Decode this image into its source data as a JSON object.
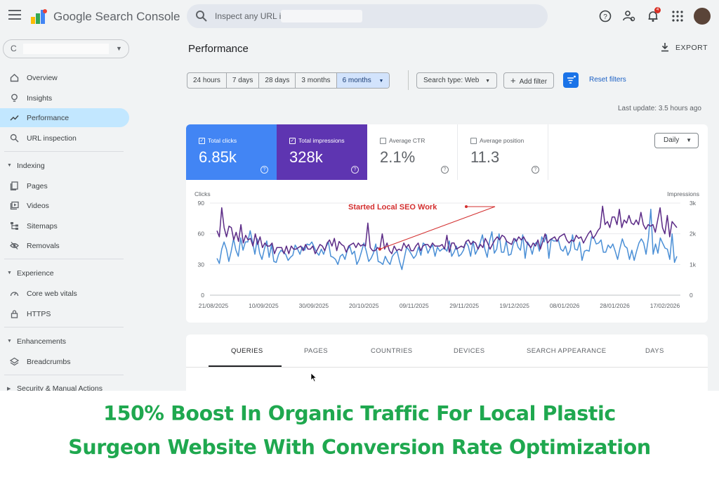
{
  "app": {
    "title": "Google Search Console",
    "search_placeholder": "Inspect any URL in '",
    "notification_count": "4"
  },
  "sidebar": {
    "property_icon_letter": "C",
    "items_top": [
      {
        "label": "Overview",
        "icon": "home-icon"
      },
      {
        "label": "Insights",
        "icon": "lightbulb-icon"
      },
      {
        "label": "Performance",
        "icon": "trending-up-icon",
        "active": true
      },
      {
        "label": "URL inspection",
        "icon": "search-icon"
      }
    ],
    "indexing": {
      "title": "Indexing",
      "items": [
        "Pages",
        "Videos",
        "Sitemaps",
        "Removals"
      ]
    },
    "experience": {
      "title": "Experience",
      "items": [
        "Core web vitals",
        "HTTPS"
      ]
    },
    "enhancements": {
      "title": "Enhancements",
      "items": [
        "Breadcrumbs"
      ]
    },
    "security": {
      "title": "Security & Manual Actions"
    }
  },
  "main": {
    "title": "Performance",
    "export_label": "EXPORT",
    "date_ranges": [
      "24 hours",
      "7 days",
      "28 days",
      "3 months",
      "6 months"
    ],
    "selected_range": "6 months",
    "search_type": "Search type: Web",
    "add_filter": "Add filter",
    "reset_filters": "Reset filters",
    "last_update": "Last update: 3.5 hours ago",
    "granularity": "Daily",
    "metrics": [
      {
        "label": "Total clicks",
        "value": "6.85k",
        "checked": true,
        "color": "#4285f4"
      },
      {
        "label": "Total impressions",
        "value": "328k",
        "checked": true,
        "color": "#5e35b1"
      },
      {
        "label": "Average CTR",
        "value": "2.1%",
        "checked": false
      },
      {
        "label": "Average position",
        "value": "11.3",
        "checked": false
      }
    ],
    "tabs": [
      "QUERIES",
      "PAGES",
      "COUNTRIES",
      "DEVICES",
      "SEARCH APPEARANCE",
      "DAYS"
    ],
    "selected_tab": "QUERIES"
  },
  "chart_data": {
    "type": "line",
    "left_axis_label": "Clicks",
    "right_axis_label": "Impressions",
    "left_ticks": [
      "90",
      "60",
      "30",
      "0"
    ],
    "right_ticks": [
      "3k",
      "2k",
      "1k",
      "0"
    ],
    "ylim_left": [
      0,
      90
    ],
    "ylim_right": [
      0,
      3000
    ],
    "x_tick_labels": [
      "21/08/2025",
      "10/09/2025",
      "30/09/2025",
      "20/10/2025",
      "09/11/2025",
      "29/11/2025",
      "19/12/2025",
      "08/01/2026",
      "28/01/2026",
      "17/02/2026"
    ],
    "annotation": {
      "text": "Started  Local SEO Work",
      "color": "#d32f2f",
      "at_index": 68
    },
    "grid": true,
    "series": [
      {
        "name": "Total clicks",
        "axis": "left",
        "color": "#4a8fd6",
        "values": [
          36,
          31,
          45,
          52,
          45,
          33,
          43,
          55,
          44,
          38,
          56,
          44,
          52,
          52,
          63,
          52,
          40,
          55,
          41,
          35,
          45,
          53,
          37,
          49,
          33,
          32,
          40,
          44,
          42,
          40,
          34,
          37,
          39,
          49,
          45,
          40,
          47,
          44,
          50,
          49,
          52,
          47,
          42,
          39,
          45,
          40,
          47,
          52,
          38,
          37,
          35,
          30,
          38,
          40,
          35,
          44,
          48,
          40,
          43,
          30,
          35,
          43,
          51,
          43,
          33,
          36,
          41,
          50,
          33,
          32,
          30,
          38,
          33,
          30,
          38,
          41,
          43,
          33,
          25,
          36,
          47,
          44,
          40,
          36,
          39,
          47,
          39,
          51,
          49,
          41,
          46,
          49,
          38,
          47,
          43,
          45,
          46,
          43,
          53,
          38,
          42,
          48,
          38,
          40,
          44,
          52,
          48,
          38,
          53,
          40,
          45,
          51,
          59,
          45,
          37,
          53,
          62,
          41,
          45,
          60,
          42,
          42,
          53,
          39,
          40,
          50,
          55,
          47,
          44,
          59,
          36,
          52,
          48,
          40,
          50,
          52,
          43,
          57,
          52,
          59,
          36,
          55,
          53,
          53,
          54,
          45,
          43,
          48,
          39,
          44,
          59,
          45,
          44,
          52,
          34,
          43,
          44,
          43,
          57,
          56,
          50,
          51,
          54,
          42,
          42,
          49,
          46,
          50,
          43,
          35,
          46,
          55,
          48,
          46,
          35,
          44,
          34,
          43,
          51,
          55,
          51,
          40,
          56,
          84,
          40,
          50,
          41,
          56,
          51,
          46,
          45,
          35,
          60,
          32,
          38
        ]
      },
      {
        "name": "Total impressions",
        "axis": "right",
        "color": "#5b2a86",
        "values": [
          2100,
          1900,
          2850,
          2200,
          1900,
          2250,
          2200,
          1800,
          2050,
          1750,
          2300,
          1700,
          1950,
          1800,
          1850,
          1600,
          2000,
          1650,
          1900,
          1550,
          1700,
          1600,
          1600,
          1700,
          1350,
          1550,
          1550,
          1550,
          1350,
          1600,
          1350,
          1600,
          1500,
          1500,
          1550,
          1600,
          1450,
          1650,
          1500,
          1500,
          1600,
          1350,
          1500,
          1650,
          1600,
          1450,
          1700,
          1800,
          1600,
          1850,
          1450,
          1750,
          1650,
          1600,
          1400,
          1600,
          1650,
          1700,
          1550,
          1700,
          1600,
          1650,
          1600,
          2350,
          1550,
          1450,
          1450,
          1550,
          1500,
          2000,
          1500,
          1700,
          1450,
          1350,
          1600,
          1450,
          1500,
          1450,
          1700,
          1550,
          1650,
          1450,
          1450,
          1600,
          1700,
          1450,
          1600,
          1650,
          1650,
          1550,
          1700,
          1600,
          1600,
          1600,
          1650,
          1500,
          1950,
          1400,
          1700,
          1700,
          1500,
          1550,
          1600,
          1550,
          1750,
          1800,
          1650,
          1750,
          1700,
          1500,
          1650,
          1550,
          1850,
          1700,
          1500,
          1650,
          1800,
          1900,
          1800,
          1950,
          1900,
          1750,
          1700,
          1650,
          1850,
          1750,
          1900,
          1800,
          1900,
          1750,
          1650,
          1550,
          1700,
          1600,
          1800,
          1500,
          1750,
          2000,
          1700,
          1800,
          1850,
          1900,
          1750,
          1900,
          1950,
          2000,
          1800,
          1700,
          1800,
          1750,
          1950,
          1850,
          1900,
          1700,
          1850,
          2000,
          2100,
          1850,
          1950,
          2100,
          2200,
          2900,
          2300,
          2400,
          2200,
          2550,
          2550,
          2300,
          2800,
          2200,
          2450,
          2350,
          2600,
          2350,
          2300,
          2450,
          2300,
          2700,
          2300,
          2150,
          2300,
          2250,
          2300,
          2050,
          2450,
          2850,
          2200,
          2000,
          2600,
          1900,
          2400,
          2300,
          2200
        ]
      }
    ]
  },
  "caption": {
    "line1": "150% Boost In Organic Traffic For Local Plastic",
    "line2": "Surgeon Website With Conversion Rate Optimization"
  }
}
